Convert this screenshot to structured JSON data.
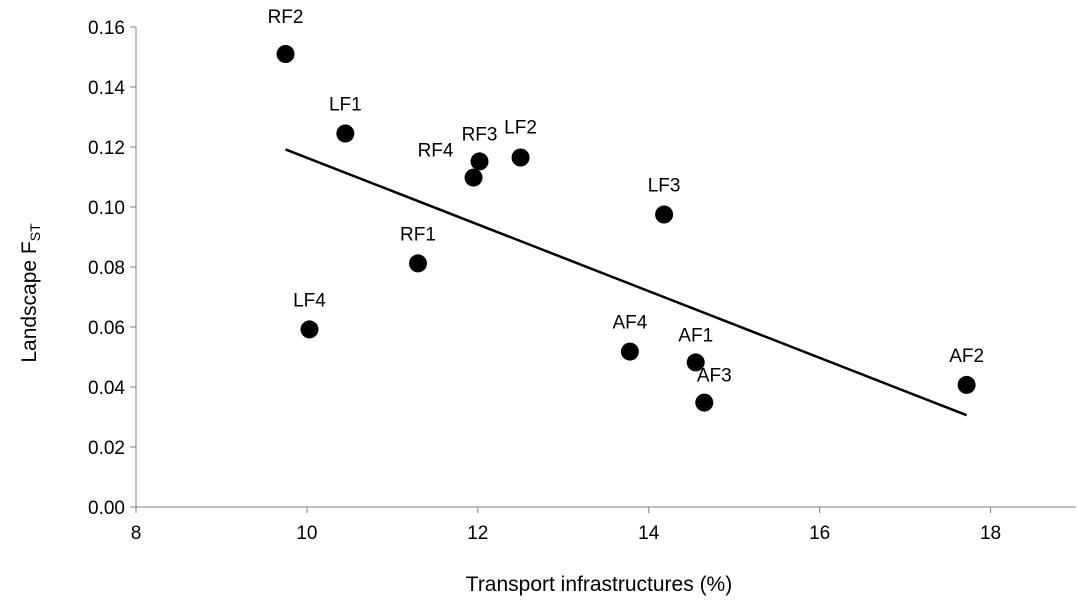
{
  "chart_data": {
    "type": "scatter",
    "xlabel": "Transport infrastructures (%)",
    "ylabel_main": "Landscape F",
    "ylabel_sub": "ST",
    "xlim": [
      8,
      19
    ],
    "ylim": [
      0,
      0.16
    ],
    "x_ticks": [
      8,
      10,
      12,
      14,
      16,
      18
    ],
    "y_ticks": [
      0.0,
      0.02,
      0.04,
      0.06,
      0.08,
      0.1,
      0.12,
      0.14,
      0.16
    ],
    "grid": false,
    "legend": "none",
    "marker_color": "#000000",
    "points": [
      {
        "label": "RF2",
        "x": 9.75,
        "y": 0.151
      },
      {
        "label": "LF1",
        "x": 10.45,
        "y": 0.1245
      },
      {
        "label": "RF3",
        "x": 12.02,
        "y": 0.1152
      },
      {
        "label": "LF2",
        "x": 12.5,
        "y": 0.1165
      },
      {
        "label": "RF4",
        "x": 11.95,
        "y": 0.1098
      },
      {
        "label": "LF3",
        "x": 14.18,
        "y": 0.0975
      },
      {
        "label": "RF1",
        "x": 11.3,
        "y": 0.0812
      },
      {
        "label": "LF4",
        "x": 10.03,
        "y": 0.0592
      },
      {
        "label": "AF4",
        "x": 13.78,
        "y": 0.0518
      },
      {
        "label": "AF1",
        "x": 14.55,
        "y": 0.0482
      },
      {
        "label": "AF3",
        "x": 14.65,
        "y": 0.0348
      },
      {
        "label": "AF2",
        "x": 17.72,
        "y": 0.0407
      }
    ],
    "trendline": {
      "x": [
        9.75,
        17.72
      ],
      "y": [
        0.1192,
        0.0306
      ]
    }
  }
}
